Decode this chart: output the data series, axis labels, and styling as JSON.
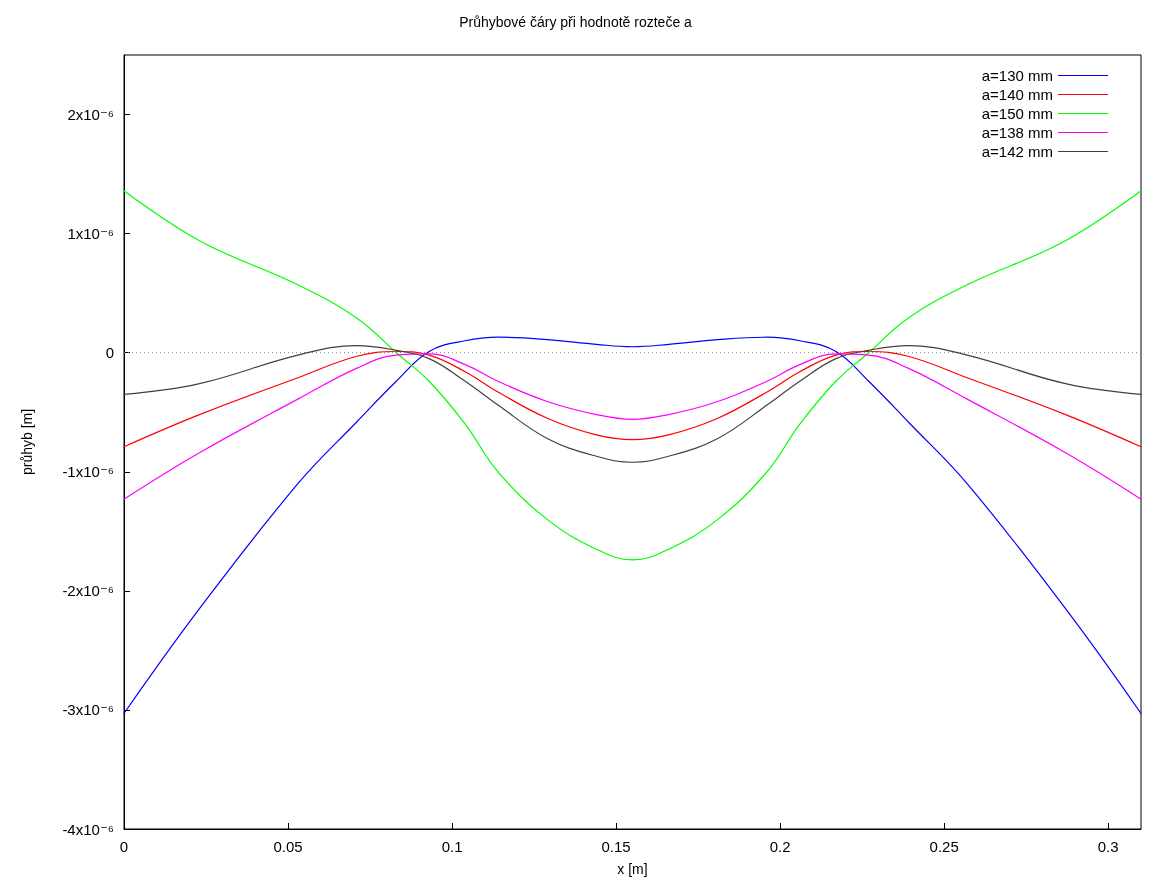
{
  "chart_data": {
    "type": "line",
    "title": "Průhybové čáry při hodnotě rozteče a",
    "xlabel": "x [m]",
    "ylabel": "průhyb [m]",
    "xlim": [
      0,
      0.31
    ],
    "xticks": [
      0,
      0.05,
      0.1,
      0.15,
      0.2,
      0.25,
      0.3
    ],
    "ylim": [
      -4e-06,
      2.5e-06
    ],
    "yticks": [
      {
        "value": -4e-06,
        "label": "-4x10⁻⁶"
      },
      {
        "value": -3e-06,
        "label": "-3x10⁻⁶"
      },
      {
        "value": -2e-06,
        "label": "-2x10⁻⁶"
      },
      {
        "value": -1e-06,
        "label": "-1x10⁻⁶"
      },
      0,
      {
        "value": 1e-06,
        "label": "1x10⁻⁶"
      },
      {
        "value": 2e-06,
        "label": "2x10⁻⁶"
      }
    ],
    "x": [
      0,
      0.023,
      0.053,
      0.071,
      0.083,
      0.093,
      0.104,
      0.114,
      0.129,
      0.144,
      0.155,
      0.166,
      0.181,
      0.196,
      0.206,
      0.217,
      0.227,
      0.239,
      0.257,
      0.287,
      0.31
    ],
    "series": [
      {
        "name": "a=130 mm",
        "color": "#0000ff",
        "values": [
          -3.03e-06,
          -2.15e-06,
          -1.1e-06,
          -5.8e-07,
          -2.4e-07,
          1e-08,
          1e-07,
          1.3e-07,
          1.1e-07,
          7e-08,
          5e-08,
          7e-08,
          1.1e-07,
          1.3e-07,
          1e-07,
          1e-08,
          -2.4e-07,
          -5.8e-07,
          -1.1e-06,
          -2.15e-06,
          -3.03e-06
        ]
      },
      {
        "name": "a=140 mm",
        "color": "#ff0000",
        "values": [
          -7.9e-07,
          -5.2e-07,
          -2.1e-07,
          -3e-08,
          1e-08,
          -2e-08,
          -1.6e-07,
          -3.3e-07,
          -5.5e-07,
          -6.9e-07,
          -7.3e-07,
          -6.9e-07,
          -5.5e-07,
          -3.3e-07,
          -1.6e-07,
          -2e-08,
          1e-08,
          -3e-08,
          -2.1e-07,
          -5.2e-07,
          -7.9e-07
        ]
      },
      {
        "name": "a=150 mm",
        "color": "#00ff00",
        "values": [
          1.36e-06,
          9.4e-07,
          5.7e-07,
          2.9e-07,
          0,
          -2.4e-07,
          -6e-07,
          -1e-06,
          -1.4e-06,
          -1.65e-06,
          -1.74e-06,
          -1.65e-06,
          -1.4e-06,
          -1e-06,
          -6e-07,
          -2.4e-07,
          0,
          2.9e-07,
          5.7e-07,
          9.4e-07,
          1.36e-06
        ]
      },
      {
        "name": "a=138 mm",
        "color": "#ff00ff",
        "values": [
          -1.23e-06,
          -8.4e-07,
          -3.9e-07,
          -1.3e-07,
          -2e-08,
          -1e-08,
          -1e-07,
          -2.4e-07,
          -4.1e-07,
          -5.2e-07,
          -5.6e-07,
          -5.2e-07,
          -4.1e-07,
          -2.4e-07,
          -1e-07,
          -1e-08,
          -2e-08,
          -1.3e-07,
          -3.9e-07,
          -8.4e-07,
          -1.23e-06
        ]
      },
      {
        "name": "a=142 mm",
        "color": "#404040",
        "values": [
          -3.5e-07,
          -2.6e-07,
          -2e-08,
          6e-08,
          2e-08,
          -5e-08,
          -2.4e-07,
          -4.4e-07,
          -7.2e-07,
          -8.7e-07,
          -9.2e-07,
          -8.7e-07,
          -7.2e-07,
          -4.4e-07,
          -2.4e-07,
          -5e-08,
          2e-08,
          6e-08,
          -2e-08,
          -2.6e-07,
          -3.5e-07
        ]
      }
    ],
    "ref_lines": [
      {
        "axis": "y",
        "value": 0,
        "line_style": "dotted",
        "color": "#808080"
      }
    ],
    "legend": "top right",
    "marker": "none",
    "line_style": "solid",
    "grid": false
  }
}
